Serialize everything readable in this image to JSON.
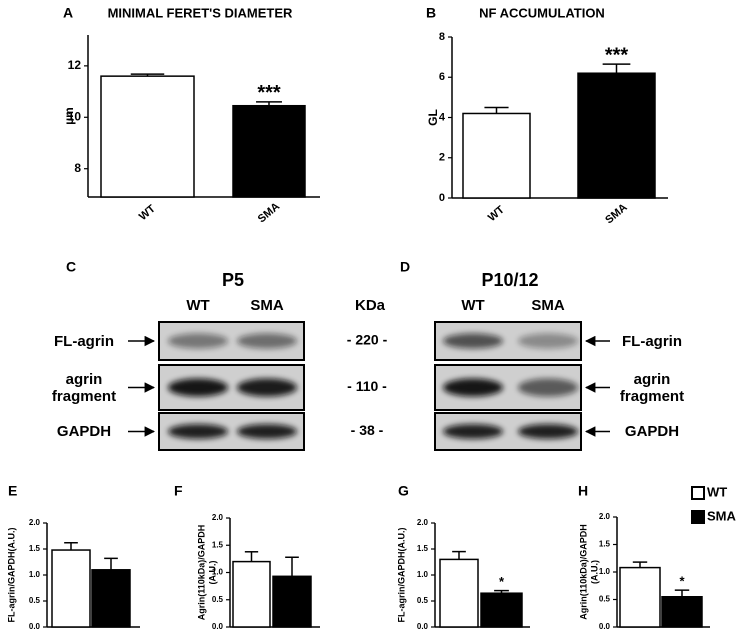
{
  "chart_data": [
    {
      "type": "bar",
      "panel": "A",
      "title": "MINIMAL FERET'S DIAMETER",
      "ylabel": "µm",
      "categories": [
        "WT",
        "SMA"
      ],
      "values": [
        11.6,
        10.45
      ],
      "errors": [
        0.08,
        0.15
      ],
      "colors": [
        "#ffffff",
        "#000000"
      ],
      "annotations": [
        null,
        "***"
      ],
      "ylim": [
        6.9,
        13.2
      ],
      "yticks": [
        8,
        10,
        12
      ]
    },
    {
      "type": "bar",
      "panel": "B",
      "title": "NF ACCUMULATION",
      "ylabel": "GL",
      "categories": [
        "WT",
        "SMA"
      ],
      "values": [
        4.2,
        6.2
      ],
      "errors": [
        0.3,
        0.45
      ],
      "colors": [
        "#ffffff",
        "#000000"
      ],
      "annotations": [
        null,
        "***"
      ],
      "ylim": [
        0,
        8
      ],
      "yticks": [
        0,
        2,
        4,
        6,
        8
      ]
    },
    {
      "type": "bar",
      "panel": "E",
      "ylabel": "FL-agrin/GAPDH(A.U.)",
      "series": [
        {
          "color": "#ffffff",
          "values": [
            1.48
          ],
          "errors": [
            0.14
          ]
        },
        {
          "color": "#000000",
          "values": [
            1.1
          ],
          "errors": [
            0.22
          ]
        }
      ],
      "ylim": [
        0,
        2
      ],
      "yticks": [
        {
          "value": 0,
          "label": "0.0"
        },
        {
          "value": 0.5,
          "label": "0.5"
        },
        {
          "value": 1,
          "label": "1.0"
        },
        {
          "value": 1.5,
          "label": "1.5"
        },
        {
          "value": 2,
          "label": "2.0"
        }
      ]
    },
    {
      "type": "bar",
      "panel": "F",
      "ylabel": [
        "Agrin(110kDa)/GAPDH",
        "(A.U.)"
      ],
      "series": [
        {
          "color": "#ffffff",
          "values": [
            1.2
          ],
          "errors": [
            0.18
          ]
        },
        {
          "color": "#000000",
          "values": [
            0.93
          ],
          "errors": [
            0.35
          ]
        }
      ],
      "ylim": [
        0,
        2
      ],
      "yticks": [
        {
          "value": 0,
          "label": "0.0"
        },
        {
          "value": 0.5,
          "label": "0.5"
        },
        {
          "value": 1,
          "label": "1.0"
        },
        {
          "value": 1.5,
          "label": "1.5"
        },
        {
          "value": 2,
          "label": "2.0"
        }
      ]
    },
    {
      "type": "bar",
      "panel": "G",
      "ylabel": "FL-agrin/GAPDH(A.U.)",
      "series": [
        {
          "color": "#ffffff",
          "values": [
            1.3
          ],
          "errors": [
            0.15
          ]
        },
        {
          "color": "#000000",
          "values": [
            0.65
          ],
          "errors": [
            0.05
          ],
          "annotation": "*"
        }
      ],
      "ylim": [
        0,
        2
      ],
      "yticks": [
        {
          "value": 0,
          "label": "0.0"
        },
        {
          "value": 0.5,
          "label": "0.5"
        },
        {
          "value": 1,
          "label": "1.0"
        },
        {
          "value": 1.5,
          "label": "1.5"
        },
        {
          "value": 2,
          "label": "2.0"
        }
      ]
    },
    {
      "type": "bar",
      "panel": "H",
      "ylabel": [
        "Agrin(110kDa)/GAPDH",
        "(A.U.)"
      ],
      "series": [
        {
          "name": "WT",
          "color": "#ffffff",
          "values": [
            1.08
          ],
          "errors": [
            0.1
          ]
        },
        {
          "name": "SMA",
          "color": "#000000",
          "values": [
            0.55
          ],
          "errors": [
            0.12
          ],
          "annotation": "*"
        }
      ],
      "legend": "top-right",
      "ylim": [
        0,
        2
      ],
      "yticks": [
        {
          "value": 0,
          "label": "0.0"
        },
        {
          "value": 0.5,
          "label": "0.5"
        },
        {
          "value": 1,
          "label": "1.0"
        },
        {
          "value": 1.5,
          "label": "1.5"
        },
        {
          "value": 2,
          "label": "2.0"
        }
      ]
    }
  ],
  "blots": [
    {
      "panel": "C",
      "title": "P5",
      "lanes": [
        "WT",
        "SMA"
      ],
      "rows": [
        "FL-agrin",
        "agrin fragment",
        "GAPDH"
      ],
      "markers_title": "KDa",
      "markers": [
        "- 220 -",
        "- 110 -",
        "- 38 -"
      ]
    },
    {
      "panel": "D",
      "title": "P10/12",
      "lanes": [
        "WT",
        "SMA"
      ],
      "rows": [
        "FL-agrin",
        "agrin fragment",
        "GAPDH"
      ]
    }
  ]
}
